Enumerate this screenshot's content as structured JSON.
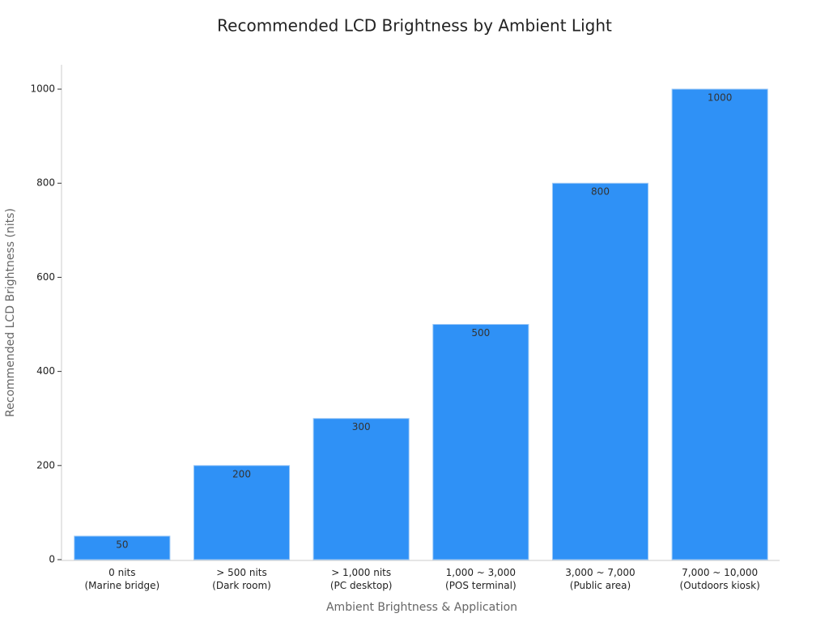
{
  "chart_data": {
    "type": "bar",
    "title": "Recommended LCD Brightness by Ambient Light",
    "x_label": "Ambient Brightness & Application",
    "y_label": "Recommended LCD Brightness (nits)",
    "categories": [
      [
        "0 nits",
        "(Marine bridge)"
      ],
      [
        "> 500 nits",
        "(Dark room)"
      ],
      [
        "> 1,000 nits",
        "(PC desktop)"
      ],
      [
        "1,000 ~ 3,000",
        "(POS terminal)"
      ],
      [
        "3,000 ~ 7,000",
        "(Public area)"
      ],
      [
        "7,000 ~ 10,000",
        "(Outdoors kiosk)"
      ]
    ],
    "values": [
      50,
      200,
      300,
      500,
      800,
      1000
    ],
    "color": "#2f91f6",
    "ylim": [
      0,
      1050
    ],
    "yticks": [
      0,
      200,
      400,
      600,
      800,
      1000
    ],
    "grid": false
  }
}
